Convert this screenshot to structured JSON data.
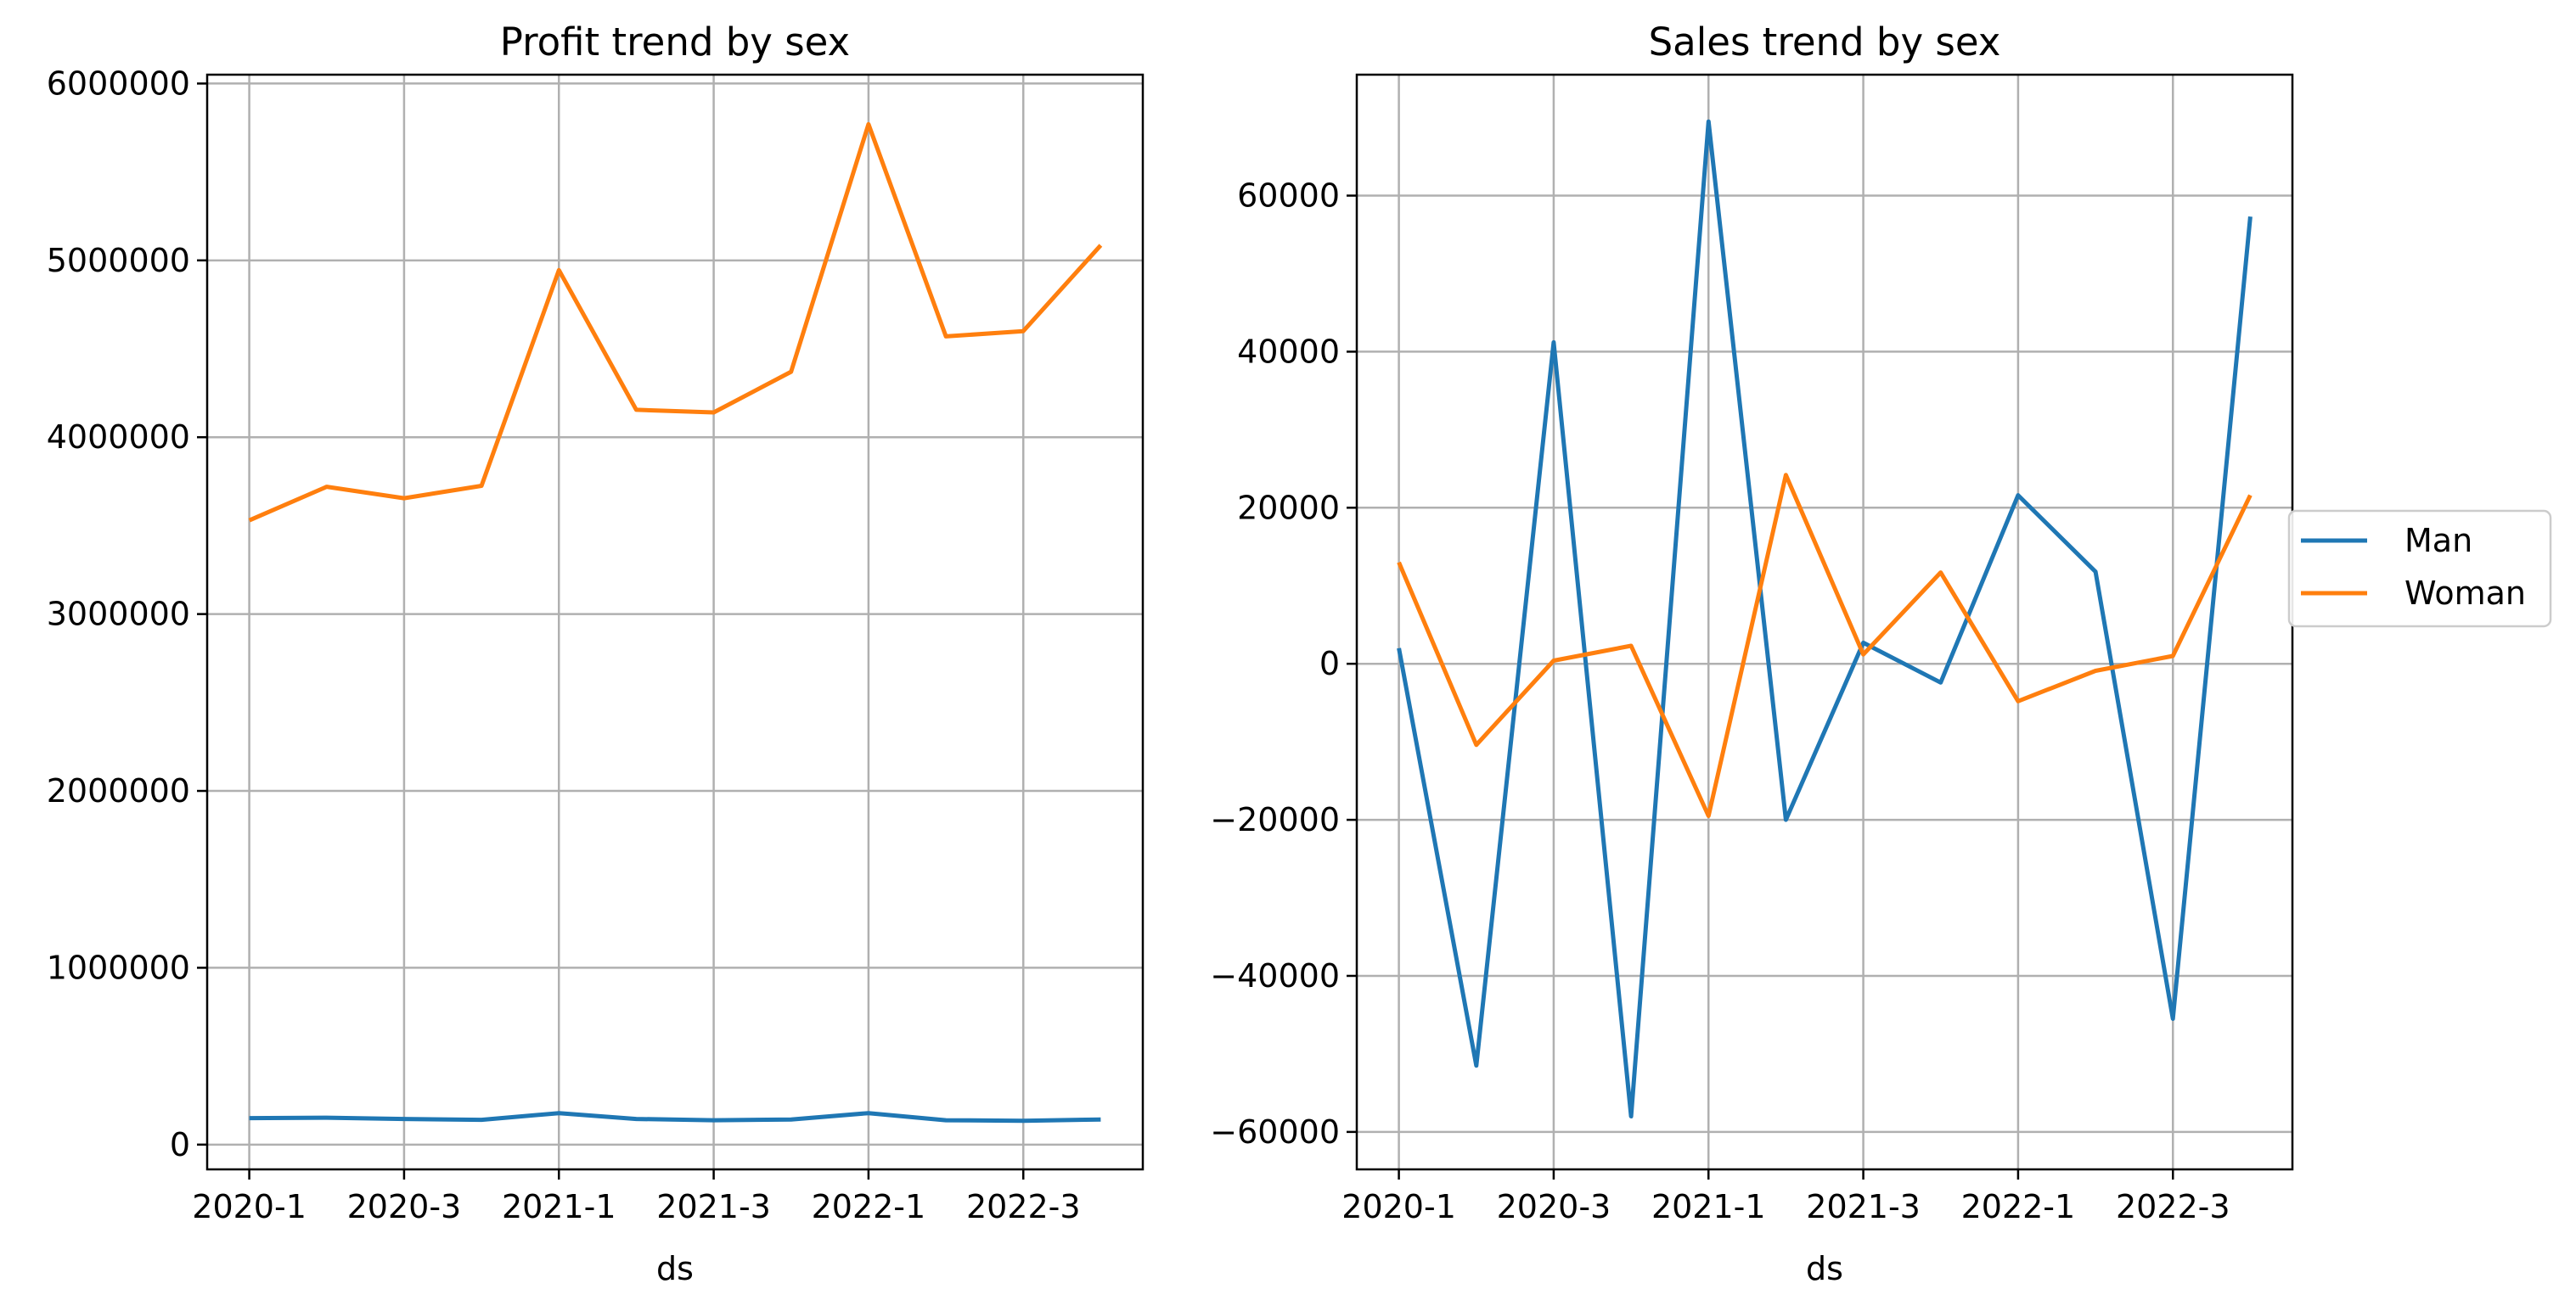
{
  "chart_data": [
    {
      "type": "line",
      "title": "Profit trend by sex",
      "xlabel": "ds",
      "ylabel": "",
      "x": [
        "2020-1",
        "2020-2",
        "2020-3",
        "2020-4",
        "2021-1",
        "2021-2",
        "2021-3",
        "2021-4",
        "2022-1",
        "2022-2",
        "2022-3",
        "2022-4"
      ],
      "xticks": [
        "2020-1",
        "2020-3",
        "2021-1",
        "2021-3",
        "2022-1",
        "2022-3"
      ],
      "yticks": [
        0,
        1000000,
        2000000,
        3000000,
        4000000,
        5000000,
        6000000
      ],
      "ylim": [
        -140000,
        6050000
      ],
      "grid": true,
      "legend": null,
      "series": [
        {
          "color": "#1f77b4",
          "values": [
            150000,
            152000,
            145000,
            140000,
            178000,
            145000,
            138000,
            142000,
            178000,
            138000,
            135000,
            142000
          ]
        },
        {
          "color": "#ff7f0e",
          "values": [
            3530000,
            3720000,
            3655000,
            3725000,
            4945000,
            4155000,
            4140000,
            4370000,
            5770000,
            4570000,
            4600000,
            5085000
          ]
        }
      ]
    },
    {
      "type": "line",
      "title": "Sales trend by sex",
      "xlabel": "ds",
      "ylabel": "",
      "x": [
        "2020-1",
        "2020-2",
        "2020-3",
        "2020-4",
        "2021-1",
        "2021-2",
        "2021-3",
        "2021-4",
        "2022-1",
        "2022-2",
        "2022-3",
        "2022-4"
      ],
      "xticks": [
        "2020-1",
        "2020-3",
        "2021-1",
        "2021-3",
        "2022-1",
        "2022-3"
      ],
      "yticks": [
        -60000,
        -40000,
        -20000,
        0,
        20000,
        40000,
        60000
      ],
      "ylim": [
        -64800,
        75500
      ],
      "grid": true,
      "legend": "center-right",
      "series": [
        {
          "name": "Man",
          "color": "#1f77b4",
          "values": [
            2000,
            -51500,
            41200,
            -58000,
            69500,
            -20000,
            2700,
            -2400,
            21600,
            11800,
            -45500,
            57300
          ]
        },
        {
          "name": "Woman",
          "color": "#ff7f0e",
          "values": [
            13000,
            -10400,
            400,
            2300,
            -19500,
            24200,
            1200,
            11700,
            -4800,
            -900,
            1000,
            21600
          ]
        }
      ]
    }
  ]
}
